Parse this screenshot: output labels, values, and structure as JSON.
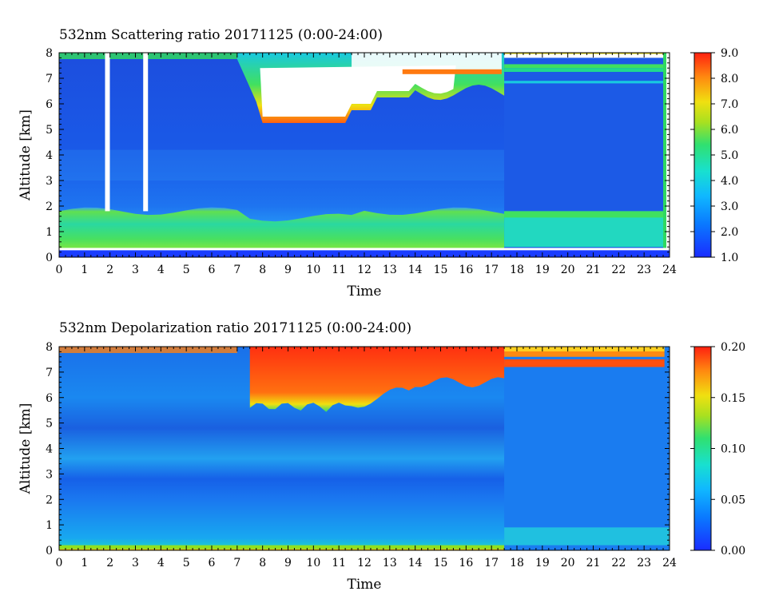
{
  "chart_data": [
    {
      "type": "heatmap",
      "title": "532nm Scattering ratio  20171125 (0:00-24:00)",
      "xlabel": "Time",
      "ylabel": "Altitude [km]",
      "xlim": [
        0,
        24
      ],
      "ylim": [
        0,
        8
      ],
      "x_ticks": [
        "0",
        "1",
        "2",
        "3",
        "4",
        "5",
        "6",
        "7",
        "8",
        "9",
        "10",
        "11",
        "12",
        "13",
        "14",
        "15",
        "16",
        "17",
        "18",
        "19",
        "20",
        "21",
        "22",
        "23",
        "24"
      ],
      "y_ticks": [
        "0",
        "1",
        "2",
        "3",
        "4",
        "5",
        "6",
        "7",
        "8"
      ],
      "colorbar": {
        "min": 1.0,
        "max": 9.0,
        "ticks": [
          "1.0",
          "2.0",
          "3.0",
          "4.0",
          "5.0",
          "6.0",
          "7.0",
          "8.0",
          "9.0"
        ]
      },
      "features": {
        "boundary_layer_top_km": 1.8,
        "cloud_region_time_h": [
          7.9,
          15.6
        ],
        "cloud_region_altitude_km": [
          5.5,
          8.0
        ],
        "upper_layers_km": [
          7.2,
          6.8
        ],
        "averaged_segment_start_h": 17.5,
        "saturated_columns_h": [
          1.9,
          3.4
        ],
        "saturated_color": "#ffffff"
      }
    },
    {
      "type": "heatmap",
      "title": "532nm Depolarization ratio  20171125 (0:00-24:00)",
      "xlabel": "Time",
      "ylabel": "Altitude [km]",
      "xlim": [
        0,
        24
      ],
      "ylim": [
        0,
        8
      ],
      "x_ticks": [
        "0",
        "1",
        "2",
        "3",
        "4",
        "5",
        "6",
        "7",
        "8",
        "9",
        "10",
        "11",
        "12",
        "13",
        "14",
        "15",
        "16",
        "17",
        "18",
        "19",
        "20",
        "21",
        "22",
        "23",
        "24"
      ],
      "y_ticks": [
        "0",
        "1",
        "2",
        "3",
        "4",
        "5",
        "6",
        "7",
        "8"
      ],
      "colorbar": {
        "min": 0.0,
        "max": 0.2,
        "ticks": [
          "0.00",
          "0.05",
          "0.10",
          "0.15",
          "0.20"
        ]
      },
      "features": {
        "cloud_region_time_h": [
          7.5,
          17.5
        ],
        "cloud_region_altitude_km": [
          5.4,
          8.0
        ],
        "high_depol_layer_km": [
          7.2,
          7.5
        ],
        "averaged_segment_start_h": 17.5
      }
    }
  ]
}
